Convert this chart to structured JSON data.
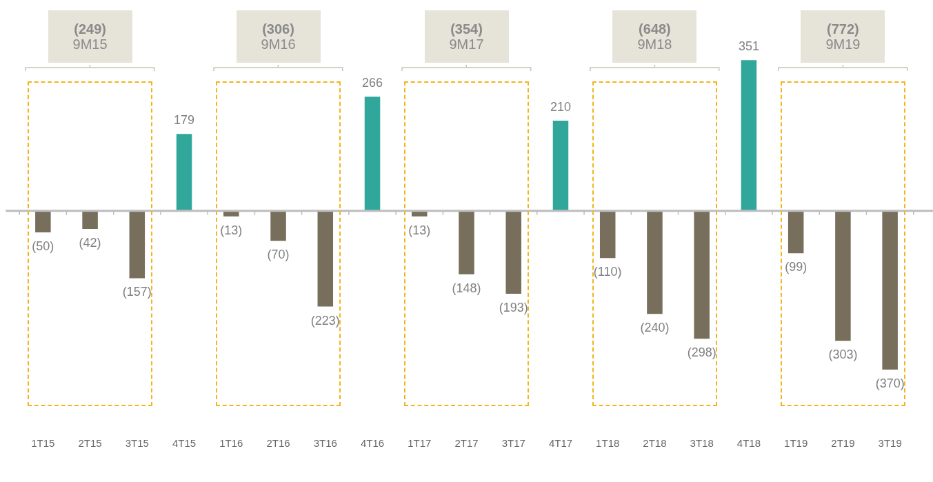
{
  "chart_data": {
    "type": "bar",
    "categories": [
      "1T15",
      "2T15",
      "3T15",
      "4T15",
      "1T16",
      "2T16",
      "3T16",
      "4T16",
      "1T17",
      "2T17",
      "3T17",
      "4T17",
      "1T18",
      "2T18",
      "3T18",
      "4T18",
      "1T19",
      "2T19",
      "3T19"
    ],
    "values": [
      -50,
      -42,
      -157,
      179,
      -13,
      -70,
      -223,
      266,
      -13,
      -148,
      -193,
      210,
      -110,
      -240,
      -298,
      351,
      -99,
      -303,
      -370
    ],
    "colors": [
      "#776e5c",
      "#776e5c",
      "#776e5c",
      "#31a79c",
      "#776e5c",
      "#776e5c",
      "#776e5c",
      "#31a79c",
      "#776e5c",
      "#776e5c",
      "#776e5c",
      "#31a79c",
      "#776e5c",
      "#776e5c",
      "#776e5c",
      "#31a79c",
      "#776e5c",
      "#776e5c",
      "#776e5c"
    ],
    "value_labels": [
      "(50)",
      "(42)",
      "(157)",
      "179",
      "(13)",
      "(70)",
      "(223)",
      "266",
      "(13)",
      "(148)",
      "(193)",
      "210",
      "(110)",
      "(240)",
      "(298)",
      "351",
      "(99)",
      "(303)",
      "(370)"
    ],
    "annotations": [
      "(249)\n9M15",
      "(306)\n9M16",
      "(354)\n9M17",
      "(648)\n9M18",
      "(772)\n9M19"
    ],
    "tick_labels": "x",
    "grid": false,
    "legend": false
  }
}
